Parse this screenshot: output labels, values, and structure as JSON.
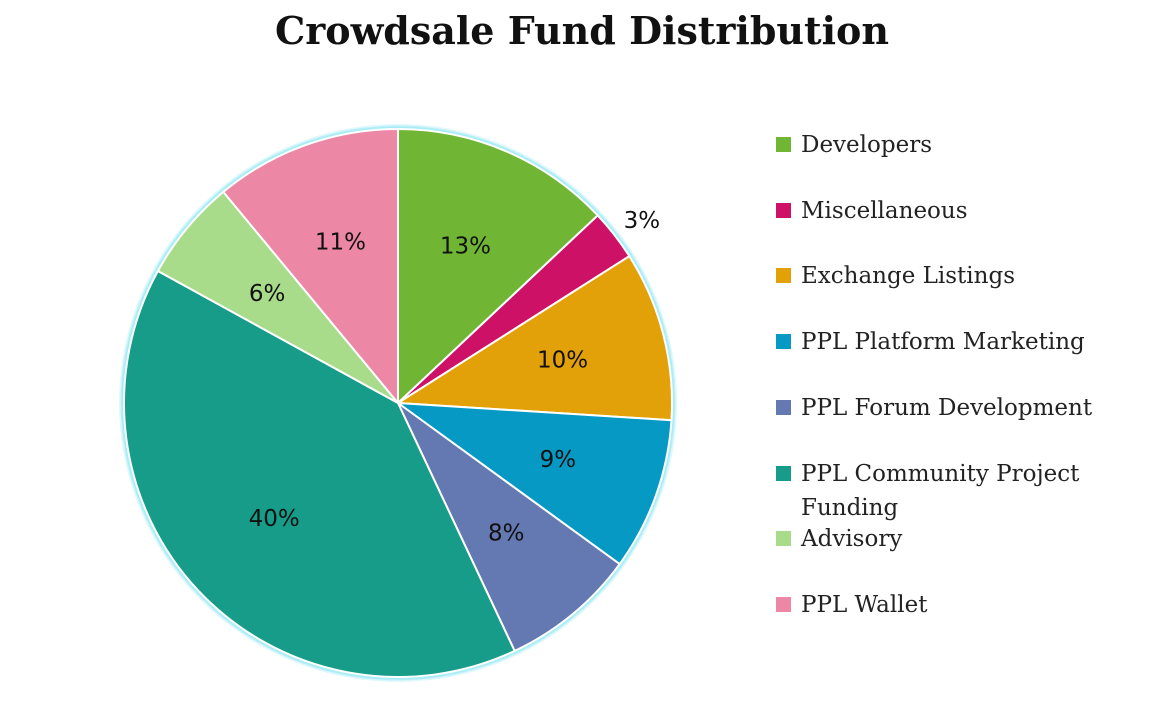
{
  "chart_data": {
    "type": "pie",
    "title": "Crowdsale Fund Distribution",
    "slices": [
      {
        "name": "Developers",
        "value": 13,
        "label": "13%",
        "color": "#70b634"
      },
      {
        "name": "Miscellaneous",
        "value": 3,
        "label": "3%",
        "color": "#cc1167"
      },
      {
        "name": "Exchange Listings",
        "value": 10,
        "label": "10%",
        "color": "#e2a109"
      },
      {
        "name": "PPL Platform Marketing",
        "value": 9,
        "label": "9%",
        "color": "#0699c4"
      },
      {
        "name": "PPL Forum Development",
        "value": 8,
        "label": "8%",
        "color": "#6478b1"
      },
      {
        "name": "PPL Community Project Funding",
        "value": 40,
        "label": "40%",
        "color": "#169c89"
      },
      {
        "name": "Advisory",
        "value": 6,
        "label": "6%",
        "color": "#a8dc8a"
      },
      {
        "name": "PPL Wallet",
        "value": 11,
        "label": "11%",
        "color": "#ec87a6"
      }
    ],
    "legend_position": "right",
    "outline_color": "#a8ecf5"
  }
}
